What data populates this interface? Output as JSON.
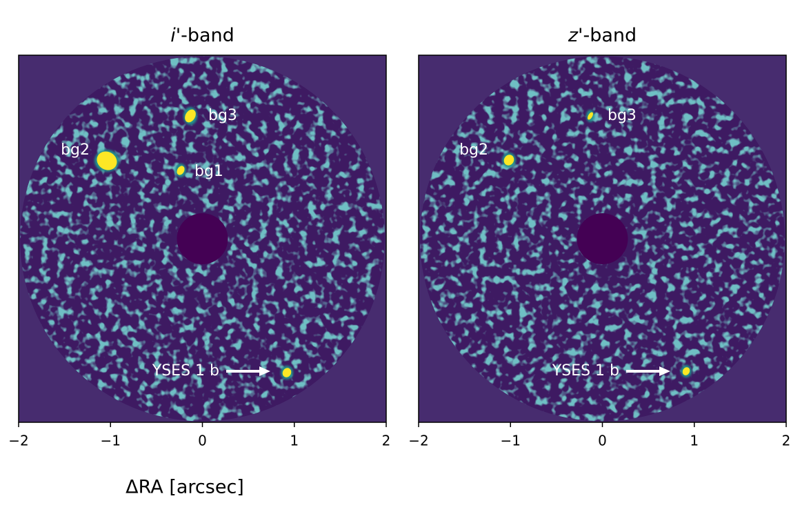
{
  "chart_data": [
    {
      "type": "image",
      "title_parts": [
        "i",
        "'-band"
      ],
      "xlim": [
        -2,
        2
      ],
      "xticks": [
        {
          "value": -2,
          "label": "−2"
        },
        {
          "value": -1,
          "label": "−1"
        },
        0,
        1,
        2
      ],
      "xlabel": "ΔRA [arcsec]",
      "annotations": [
        "bg3",
        "bg2",
        "bg1",
        "YSES 1 b"
      ]
    },
    {
      "type": "image",
      "title_parts": [
        "z",
        "'-band"
      ],
      "xlim": [
        -2,
        2
      ],
      "xticks": [
        {
          "value": -2,
          "label": "−2"
        },
        {
          "value": -1,
          "label": "−1"
        },
        0,
        1,
        2
      ],
      "annotations": [
        "bg3",
        "bg2",
        "YSES 1 b"
      ]
    }
  ]
}
